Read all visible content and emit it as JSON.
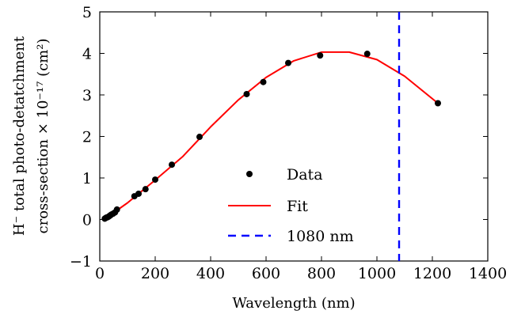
{
  "chart_data": {
    "type": "scatter",
    "title": "",
    "xlabel": "Wavelength (nm)",
    "ylabel_lines": [
      "H⁻ total photo-detatchment",
      "cross-section × 10⁻¹⁷ (cm²)"
    ],
    "xlim": [
      0,
      1400
    ],
    "ylim": [
      -1,
      5
    ],
    "x_ticks": [
      0,
      200,
      400,
      600,
      800,
      1000,
      1200,
      1400
    ],
    "y_ticks": [
      -1,
      0,
      1,
      2,
      3,
      4,
      5
    ],
    "grid": false,
    "legend_position": "bottom-center",
    "series": [
      {
        "name": "Data",
        "kind": "points",
        "color": "#000000",
        "x": [
          18,
          22,
          26,
          30,
          34,
          38,
          42,
          48,
          55,
          62,
          125,
          140,
          165,
          200,
          260,
          360,
          530,
          590,
          680,
          795,
          965,
          1220
        ],
        "y": [
          0.02,
          0.04,
          0.05,
          0.06,
          0.08,
          0.1,
          0.12,
          0.14,
          0.17,
          0.24,
          0.56,
          0.62,
          0.73,
          0.96,
          1.32,
          1.99,
          3.02,
          3.31,
          3.77,
          3.95,
          3.99,
          2.8
        ]
      },
      {
        "name": "Fit",
        "kind": "line",
        "color": "#ff0000",
        "x": [
          15,
          100,
          200,
          300,
          400,
          500,
          600,
          700,
          800,
          900,
          1000,
          1100,
          1220
        ],
        "y": [
          0.0,
          0.4,
          0.95,
          1.52,
          2.23,
          2.88,
          3.42,
          3.82,
          4.03,
          4.03,
          3.85,
          3.45,
          2.8
        ]
      },
      {
        "name": "1080 nm",
        "kind": "vline",
        "color": "#0000ff",
        "x": 1080
      }
    ]
  }
}
